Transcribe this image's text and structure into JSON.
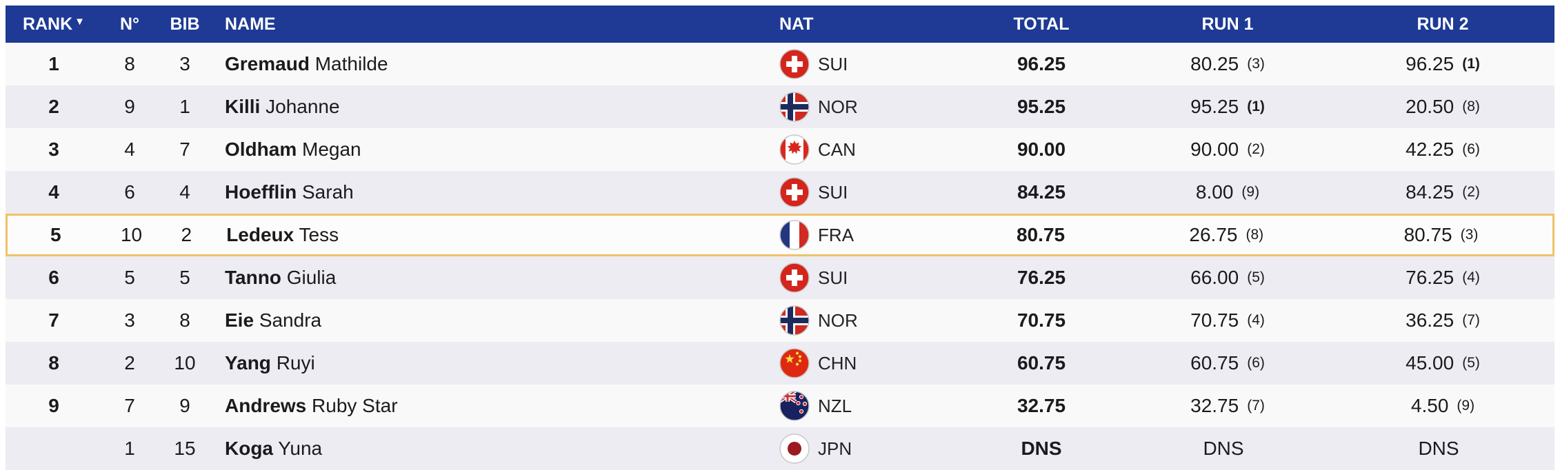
{
  "colors": {
    "header_bg": "#1e3a94",
    "header_text": "#ffffff",
    "row_light": "#f9f9fa",
    "row_alt": "#ececf2",
    "highlight_border": "#f0c269",
    "text": "#1b1b1d"
  },
  "table": {
    "headers": {
      "rank": "RANK",
      "n": "N°",
      "bib": "BIB",
      "name": "NAME",
      "nat": "NAT",
      "total": "TOTAL",
      "run1": "RUN 1",
      "run2": "RUN 2"
    },
    "sort_icon": "▼",
    "rows": [
      {
        "rank": "1",
        "n": "8",
        "bib": "3",
        "last_name": "Gremaud",
        "first_name": "Mathilde",
        "nat": "SUI",
        "total": "96.25",
        "run1_score": "80.25",
        "run1_rank": "(3)",
        "run2_score": "96.25",
        "run2_rank": "(1)",
        "highlighted": false
      },
      {
        "rank": "2",
        "n": "9",
        "bib": "1",
        "last_name": "Killi",
        "first_name": "Johanne",
        "nat": "NOR",
        "total": "95.25",
        "run1_score": "95.25",
        "run1_rank": "(1)",
        "run2_score": "20.50",
        "run2_rank": "(8)",
        "highlighted": false
      },
      {
        "rank": "3",
        "n": "4",
        "bib": "7",
        "last_name": "Oldham",
        "first_name": "Megan",
        "nat": "CAN",
        "total": "90.00",
        "run1_score": "90.00",
        "run1_rank": "(2)",
        "run2_score": "42.25",
        "run2_rank": "(6)",
        "highlighted": false
      },
      {
        "rank": "4",
        "n": "6",
        "bib": "4",
        "last_name": "Hoefflin",
        "first_name": "Sarah",
        "nat": "SUI",
        "total": "84.25",
        "run1_score": "8.00",
        "run1_rank": "(9)",
        "run2_score": "84.25",
        "run2_rank": "(2)",
        "highlighted": false
      },
      {
        "rank": "5",
        "n": "10",
        "bib": "2",
        "last_name": "Ledeux",
        "first_name": "Tess",
        "nat": "FRA",
        "total": "80.75",
        "run1_score": "26.75",
        "run1_rank": "(8)",
        "run2_score": "80.75",
        "run2_rank": "(3)",
        "highlighted": true
      },
      {
        "rank": "6",
        "n": "5",
        "bib": "5",
        "last_name": "Tanno",
        "first_name": "Giulia",
        "nat": "SUI",
        "total": "76.25",
        "run1_score": "66.00",
        "run1_rank": "(5)",
        "run2_score": "76.25",
        "run2_rank": "(4)",
        "highlighted": false
      },
      {
        "rank": "7",
        "n": "3",
        "bib": "8",
        "last_name": "Eie",
        "first_name": "Sandra",
        "nat": "NOR",
        "total": "70.75",
        "run1_score": "70.75",
        "run1_rank": "(4)",
        "run2_score": "36.25",
        "run2_rank": "(7)",
        "highlighted": false
      },
      {
        "rank": "8",
        "n": "2",
        "bib": "10",
        "last_name": "Yang",
        "first_name": "Ruyi",
        "nat": "CHN",
        "total": "60.75",
        "run1_score": "60.75",
        "run1_rank": "(6)",
        "run2_score": "45.00",
        "run2_rank": "(5)",
        "highlighted": false
      },
      {
        "rank": "9",
        "n": "7",
        "bib": "9",
        "last_name": "Andrews",
        "first_name": "Ruby Star",
        "nat": "NZL",
        "total": "32.75",
        "run1_score": "32.75",
        "run1_rank": "(7)",
        "run2_score": "4.50",
        "run2_rank": "(9)",
        "highlighted": false
      },
      {
        "rank": "",
        "n": "1",
        "bib": "15",
        "last_name": "Koga",
        "first_name": "Yuna",
        "nat": "JPN",
        "total": "DNS",
        "run1_score": "DNS",
        "run1_rank": "",
        "run2_score": "DNS",
        "run2_rank": "",
        "highlighted": false
      }
    ]
  }
}
